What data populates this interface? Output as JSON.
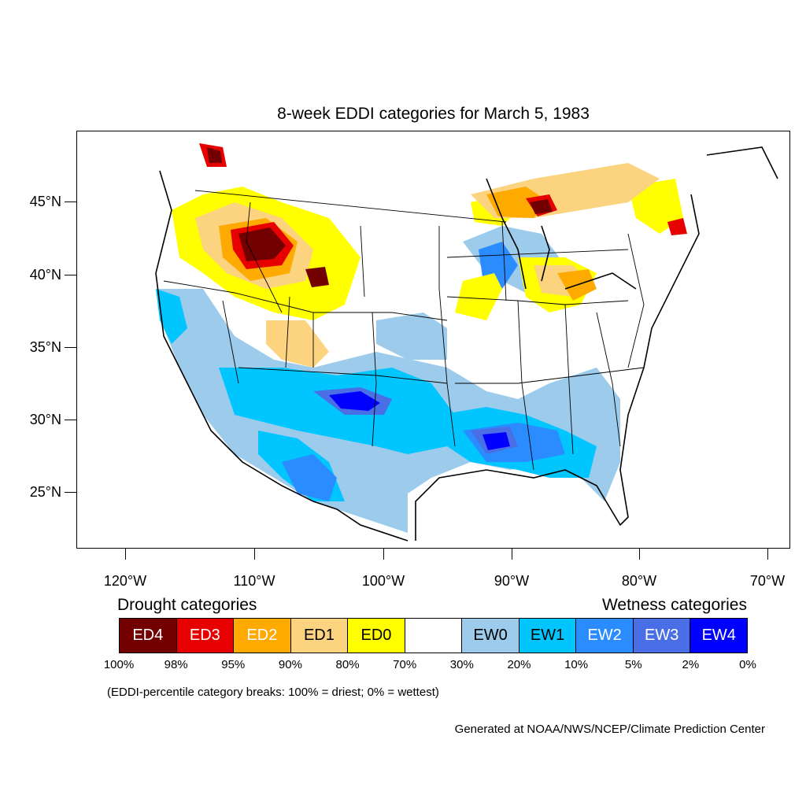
{
  "title": "8-week EDDI categories for March 5, 1983",
  "lat_labels": [
    "45°N",
    "40°N",
    "35°N",
    "30°N",
    "25°N"
  ],
  "lon_labels": [
    "120°W",
    "110°W",
    "100°W",
    "90°W",
    "80°W",
    "70°W"
  ],
  "legend": {
    "drought_header": "Drought categories",
    "wetness_header": "Wetness categories",
    "categories": [
      {
        "label": "ED4",
        "color": "#730000",
        "text_color": "#ffffff"
      },
      {
        "label": "ED3",
        "color": "#e60000",
        "text_color": "#ffffff"
      },
      {
        "label": "ED2",
        "color": "#ffaa00",
        "text_color": "#ffffff"
      },
      {
        "label": "ED1",
        "color": "#fcd37f",
        "text_color": "#000000"
      },
      {
        "label": "ED0",
        "color": "#ffff00",
        "text_color": "#000000"
      },
      {
        "label": "",
        "color": "#ffffff",
        "text_color": "#000000"
      },
      {
        "label": "EW0",
        "color": "#9ccbeb",
        "text_color": "#000000"
      },
      {
        "label": "EW1",
        "color": "#00c5ff",
        "text_color": "#000000"
      },
      {
        "label": "EW2",
        "color": "#2b8cff",
        "text_color": "#ffffff"
      },
      {
        "label": "EW3",
        "color": "#4a6ee6",
        "text_color": "#ffffff"
      },
      {
        "label": "EW4",
        "color": "#0000ff",
        "text_color": "#ffffff"
      }
    ],
    "percentiles": [
      "100%",
      "98%",
      "95%",
      "90%",
      "80%",
      "70%",
      "30%",
      "20%",
      "10%",
      "5%",
      "2%",
      "0%"
    ]
  },
  "note": "(EDDI-percentile category breaks: 100% = driest; 0% = wettest)",
  "credit": "Generated at NOAA/NWS/NCEP/Climate Prediction Center"
}
